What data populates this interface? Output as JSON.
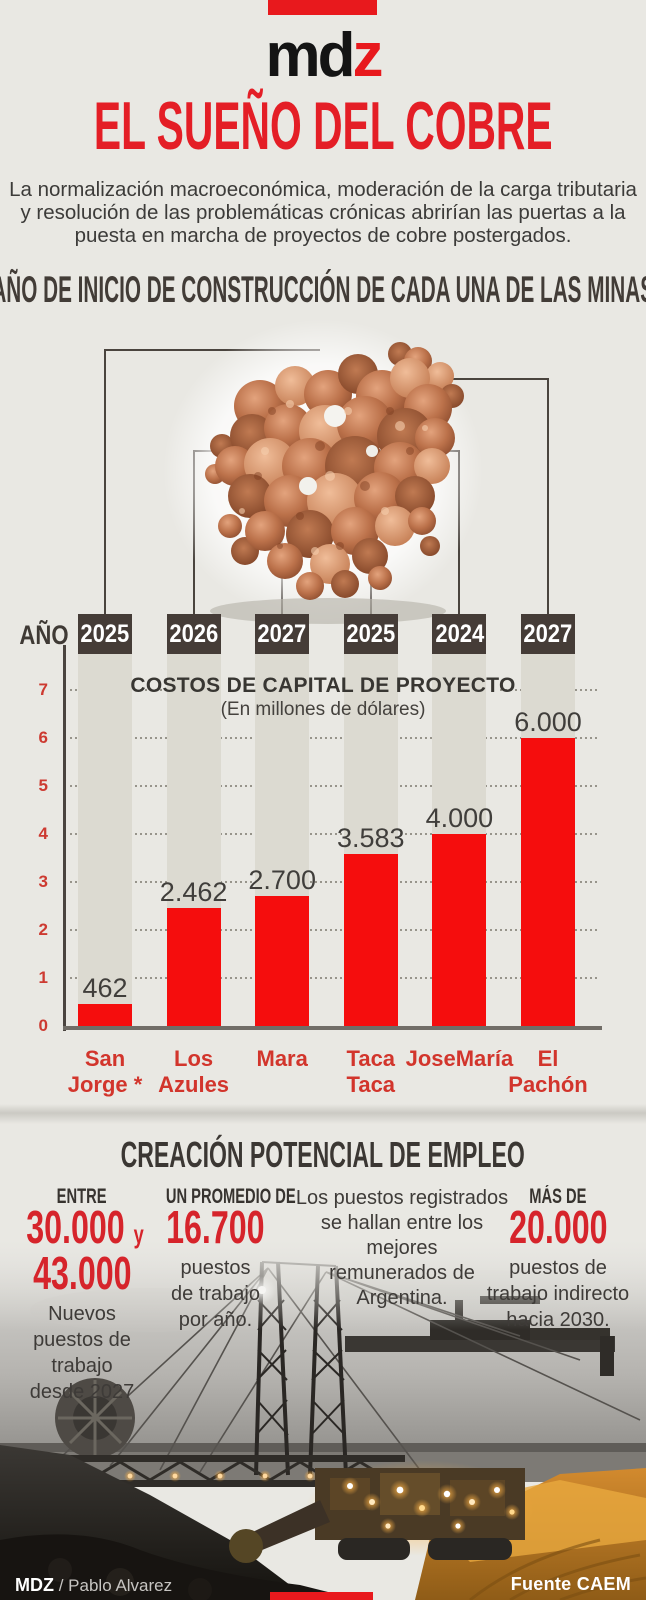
{
  "brand": {
    "logo_md": "md",
    "logo_z": "z"
  },
  "header": {
    "title": "EL SUEÑO DEL COBRE",
    "intro": "La normalización macroeconómica, moderación de la carga tributaria\ny resolución de las problemáticas crónicas abrirían las puertas a la\npuesta en marcha de proyectos de cobre postergados."
  },
  "construction": {
    "section_title": "AÑO DE INICIO DE CONSTRUCCIÓN DE CADA UNA DE LAS MINAS",
    "axis_label": "AÑO"
  },
  "chart_data": {
    "type": "bar",
    "title": "COSTOS DE CAPITAL DE PROYECTO",
    "subtitle": "(En millones de dólares)",
    "categories": [
      "San Jorge *",
      "Los Azules",
      "Mara",
      "Taca Taca",
      "JoseMaría",
      "El Pachón"
    ],
    "category_lines": [
      "San\nJorge *",
      "Los\nAzules",
      "Mara",
      "Taca\nTaca",
      "JoseMaría",
      "El\nPachón"
    ],
    "values": [
      462,
      2462,
      2700,
      3583,
      4000,
      6000
    ],
    "value_labels": [
      "462",
      "2.462",
      "2.700",
      "3.583",
      "4.000",
      "6.000"
    ],
    "construction_start_years": [
      "2025",
      "2026",
      "2027",
      "2025",
      "2024",
      "2027"
    ],
    "y_ticks": [
      0,
      1,
      2,
      3,
      4,
      5,
      6,
      7
    ],
    "ylim": [
      0,
      7.5
    ],
    "grid": true,
    "legend": "none",
    "xlabel": "",
    "ylabel": ""
  },
  "employment": {
    "section_title": "CREACIÓN POTENCIAL DE EMPLEO",
    "stats": [
      {
        "kicker": "ENTRE",
        "big": "30.000",
        "big_suffix": "y",
        "big2": "43.000",
        "caption": "Nuevos\npuestos de\ntrabajo\ndesde 2027"
      },
      {
        "kicker": "UN PROMEDIO DE",
        "big": "16.700",
        "caption": "puestos\nde trabajo\npor año."
      },
      {
        "note": "Los puestos registrados\nse hallan entre los mejores\nremunerados de Argentina."
      },
      {
        "kicker": "MÁS DE",
        "big": "20.000",
        "caption": "puestos de\ntrabajo indirecto\nhacia 2030."
      }
    ]
  },
  "footer": {
    "credit_brand": "MDZ",
    "credit_rest": "/ Pablo Alvarez",
    "source": "Fuente CAEM"
  },
  "colors": {
    "brand_red": "#e8191d",
    "title_red": "#e41e26",
    "bar_red": "#f50d0d",
    "number_red": "#d6242b",
    "tick_red": "#cd3a31",
    "category_red": "#d2352c",
    "dark_text": "#3c3b39",
    "year_box": "#453c37",
    "track_gray": "#dcdad1",
    "background": "#e9e8e3",
    "leader_line": "#4a443e"
  }
}
